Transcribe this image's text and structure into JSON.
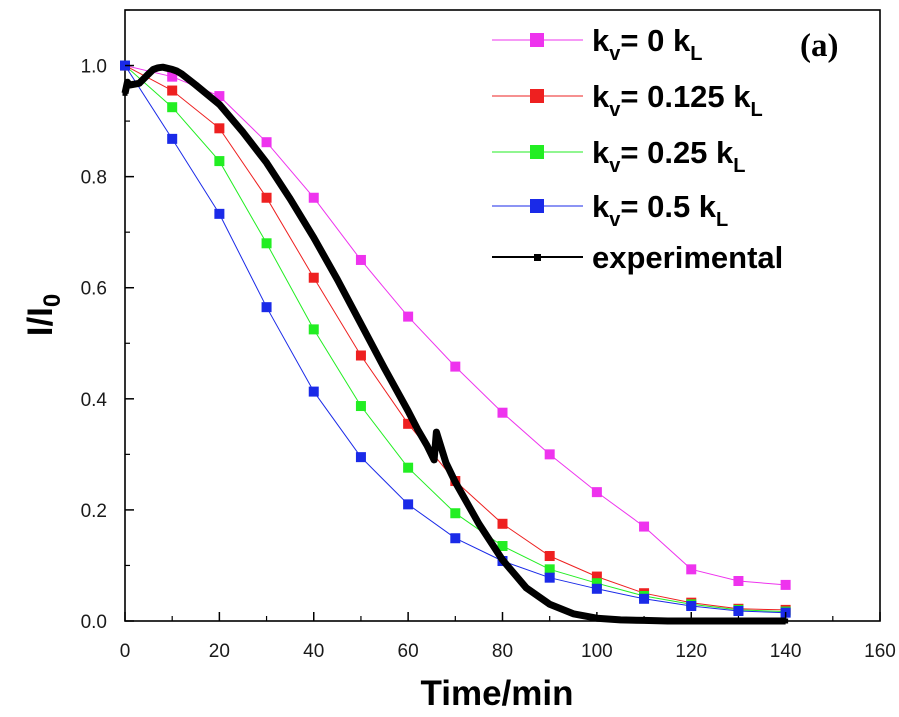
{
  "panel_label": "(a)",
  "chart_data": {
    "type": "line",
    "xlabel": "Time/min",
    "ylabel": {
      "main": "I/I",
      "sub": "0"
    },
    "xlim": [
      0,
      160
    ],
    "ylim": [
      0,
      1.1
    ],
    "xticks": [
      0,
      20,
      40,
      60,
      80,
      100,
      120,
      140,
      160
    ],
    "yticks": [
      0.0,
      0.2,
      0.4,
      0.6,
      0.8,
      1.0
    ],
    "ytick_labels": [
      "0.0",
      "0.2",
      "0.4",
      "0.6",
      "0.8",
      "1.0"
    ],
    "grid": false,
    "legend_position": "top-right",
    "series": [
      {
        "name": "kv = 0 kL",
        "label": {
          "a": "k",
          "a_sub": "v",
          "b": "= 0 k",
          "b_sub": "L"
        },
        "color": "#ee33ee",
        "marker": "square",
        "x": [
          0,
          10,
          20,
          30,
          40,
          50,
          60,
          70,
          80,
          90,
          100,
          110,
          120,
          130,
          140
        ],
        "y": [
          1.0,
          0.98,
          0.945,
          0.862,
          0.762,
          0.65,
          0.548,
          0.458,
          0.375,
          0.3,
          0.232,
          0.17,
          0.093,
          0.072,
          0.065
        ]
      },
      {
        "name": "kv = 0.125 kL",
        "label": {
          "a": "k",
          "a_sub": "v",
          "b": "= 0.125 k",
          "b_sub": "L"
        },
        "color": "#ee2020",
        "marker": "square",
        "x": [
          0,
          10,
          20,
          30,
          40,
          50,
          60,
          70,
          80,
          90,
          100,
          110,
          120,
          130,
          140
        ],
        "y": [
          1.0,
          0.955,
          0.887,
          0.762,
          0.618,
          0.478,
          0.355,
          0.252,
          0.175,
          0.117,
          0.08,
          0.05,
          0.033,
          0.022,
          0.02
        ]
      },
      {
        "name": "kv = 0.25 kL",
        "label": {
          "a": "k",
          "a_sub": "v",
          "b": "= 0.25 k",
          "b_sub": "L"
        },
        "color": "#22ee22",
        "marker": "square",
        "x": [
          0,
          10,
          20,
          30,
          40,
          50,
          60,
          70,
          80,
          90,
          100,
          110,
          120,
          130,
          140
        ],
        "y": [
          1.0,
          0.925,
          0.828,
          0.68,
          0.525,
          0.387,
          0.276,
          0.194,
          0.135,
          0.093,
          0.068,
          0.045,
          0.03,
          0.02,
          0.017
        ]
      },
      {
        "name": "kv = 0.5 kL",
        "label": {
          "a": "k",
          "a_sub": "v",
          "b": "= 0.5 k",
          "b_sub": "L"
        },
        "color": "#1a2ae8",
        "marker": "square",
        "x": [
          0,
          10,
          20,
          30,
          40,
          50,
          60,
          70,
          80,
          90,
          100,
          110,
          120,
          130,
          140
        ],
        "y": [
          1.0,
          0.868,
          0.733,
          0.565,
          0.413,
          0.295,
          0.21,
          0.149,
          0.108,
          0.078,
          0.058,
          0.04,
          0.027,
          0.018,
          0.015
        ]
      },
      {
        "name": "experimental",
        "label": {
          "a": "experimental",
          "a_sub": "",
          "b": "",
          "b_sub": ""
        },
        "color": "#000000",
        "marker": "small-square",
        "x": [
          0,
          0.5,
          1,
          3,
          5,
          6,
          7,
          8,
          9,
          10,
          11,
          12,
          15,
          20,
          25,
          30,
          35,
          40,
          45,
          50,
          55,
          60,
          62,
          64,
          65.5,
          66,
          68,
          70,
          75,
          80,
          85,
          90,
          95,
          100,
          105,
          110,
          115,
          120,
          130,
          140
        ],
        "y": [
          0.95,
          0.97,
          0.965,
          0.968,
          0.985,
          0.993,
          0.996,
          0.997,
          0.995,
          0.993,
          0.99,
          0.985,
          0.965,
          0.93,
          0.88,
          0.825,
          0.76,
          0.69,
          0.615,
          0.535,
          0.455,
          0.378,
          0.345,
          0.316,
          0.29,
          0.34,
          0.285,
          0.25,
          0.175,
          0.11,
          0.06,
          0.03,
          0.013,
          0.005,
          0.002,
          0.001,
          0.0,
          0.0,
          0.0,
          0.0
        ]
      }
    ]
  }
}
